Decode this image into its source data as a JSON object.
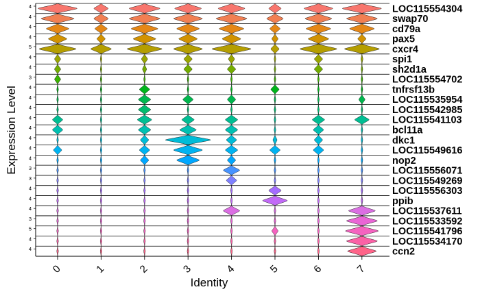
{
  "chart_data": {
    "type": "stacked-violin",
    "xlabel": "Identity",
    "ylabel": "Expression Level",
    "categories": [
      "0",
      "1",
      "2",
      "3",
      "4",
      "5",
      "6",
      "7"
    ],
    "genes": [
      {
        "name": "LOC115554304",
        "ymax_label": "4",
        "color": "#F8766D",
        "widths": [
          0.95,
          0.35,
          0.75,
          0.65,
          0.65,
          0.3,
          0.7,
          0.95
        ]
      },
      {
        "name": "swap70",
        "ymax_label": "4",
        "color": "#F17F52",
        "widths": [
          0.8,
          0.35,
          0.75,
          0.7,
          0.75,
          0.4,
          0.65,
          0.75
        ]
      },
      {
        "name": "cd79a",
        "ymax_label": "4",
        "color": "#E58716",
        "widths": [
          0.55,
          0.3,
          0.65,
          0.55,
          0.6,
          0.25,
          0.6,
          0.6
        ]
      },
      {
        "name": "pax5",
        "ymax_label": "4",
        "color": "#D29200",
        "widths": [
          0.45,
          0.2,
          0.55,
          0.45,
          0.45,
          0.15,
          0.5,
          0.2
        ]
      },
      {
        "name": "cxcr4",
        "ymax_label": "5",
        "color": "#B59E00",
        "widths": [
          0.9,
          0.5,
          0.85,
          0.7,
          0.95,
          0.2,
          0.9,
          0.85
        ]
      },
      {
        "name": "spi1",
        "ymax_label": "4",
        "color": "#9AA600",
        "widths": [
          0.15,
          0.0,
          0.15,
          0.2,
          0.15,
          0.0,
          0.2,
          0.05
        ]
      },
      {
        "name": "sh2d1a",
        "ymax_label": "4",
        "color": "#74AD00",
        "widths": [
          0.15,
          0.0,
          0.1,
          0.2,
          0.2,
          0.0,
          0.2,
          0.0
        ]
      },
      {
        "name": "LOC115554702",
        "ymax_label": "3",
        "color": "#3CB300",
        "widths": [
          0.15,
          0.0,
          0.0,
          0.0,
          0.0,
          0.0,
          0.0,
          0.0
        ]
      },
      {
        "name": "tnfrsf13b",
        "ymax_label": "4",
        "color": "#00B41B",
        "widths": [
          0.0,
          0.0,
          0.25,
          0.0,
          0.0,
          0.2,
          0.0,
          0.0
        ]
      },
      {
        "name": "LOC115535954",
        "ymax_label": "4",
        "color": "#00B74E",
        "widths": [
          0.0,
          0.0,
          0.3,
          0.25,
          0.2,
          0.0,
          0.0,
          0.15
        ]
      },
      {
        "name": "LOC115542985",
        "ymax_label": "4",
        "color": "#00BB6E",
        "widths": [
          0.0,
          0.0,
          0.3,
          0.0,
          0.0,
          0.0,
          0.0,
          0.0
        ]
      },
      {
        "name": "LOC115541103",
        "ymax_label": "4",
        "color": "#00BE93",
        "widths": [
          0.25,
          0.0,
          0.35,
          0.3,
          0.3,
          0.0,
          0.3,
          0.35
        ]
      },
      {
        "name": "bcl11a",
        "ymax_label": "4",
        "color": "#00C0B2",
        "widths": [
          0.25,
          0.0,
          0.3,
          0.4,
          0.3,
          0.0,
          0.25,
          0.0
        ]
      },
      {
        "name": "dkc1",
        "ymax_label": "4",
        "color": "#00BCD8",
        "widths": [
          0.0,
          0.0,
          0.2,
          1.1,
          0.25,
          0.1,
          0.2,
          0.0
        ]
      },
      {
        "name": "LOC115549616",
        "ymax_label": "4",
        "color": "#00B3F1",
        "widths": [
          0.2,
          0.0,
          0.25,
          0.7,
          0.3,
          0.25,
          0.25,
          0.0
        ]
      },
      {
        "name": "nop2",
        "ymax_label": "4",
        "color": "#00A7FF",
        "widths": [
          0.0,
          0.0,
          0.2,
          0.55,
          0.2,
          0.0,
          0.0,
          0.0
        ]
      },
      {
        "name": "LOC115556071",
        "ymax_label": "3",
        "color": "#4793FF",
        "widths": [
          0.0,
          0.0,
          0.0,
          0.0,
          0.4,
          0.0,
          0.0,
          0.0
        ]
      },
      {
        "name": "LOC115549269",
        "ymax_label": "3",
        "color": "#7F80FF",
        "widths": [
          0.0,
          0.0,
          0.0,
          0.0,
          0.25,
          0.0,
          0.0,
          0.0
        ]
      },
      {
        "name": "LOC115556303",
        "ymax_label": "4",
        "color": "#A46CFF",
        "widths": [
          0.0,
          0.0,
          0.0,
          0.0,
          0.0,
          0.3,
          0.0,
          0.0
        ]
      },
      {
        "name": "ppib",
        "ymax_label": "4",
        "color": "#C26AF7",
        "widths": [
          0.0,
          0.0,
          0.0,
          0.0,
          0.0,
          0.6,
          0.0,
          0.0
        ]
      },
      {
        "name": "LOC115537611",
        "ymax_label": "4",
        "color": "#DB6EE3",
        "widths": [
          0.0,
          0.0,
          0.0,
          0.0,
          0.4,
          0.0,
          0.0,
          0.65
        ]
      },
      {
        "name": "LOC115533592",
        "ymax_label": "3",
        "color": "#EA65D6",
        "widths": [
          0.0,
          0.0,
          0.0,
          0.0,
          0.0,
          0.0,
          0.0,
          0.75
        ]
      },
      {
        "name": "LOC115541796",
        "ymax_label": "5",
        "color": "#F563C0",
        "widths": [
          0.0,
          0.0,
          0.0,
          0.0,
          0.0,
          0.15,
          0.0,
          0.8
        ]
      },
      {
        "name": "LOC115534170",
        "ymax_label": "4",
        "color": "#FB61A6",
        "widths": [
          0.0,
          0.0,
          0.0,
          0.0,
          0.0,
          0.0,
          0.0,
          0.75
        ]
      },
      {
        "name": "ccn2",
        "ymax_label": "4",
        "color": "#FF6489",
        "widths": [
          0.0,
          0.0,
          0.0,
          0.0,
          0.0,
          0.0,
          0.0,
          0.7
        ]
      }
    ]
  }
}
